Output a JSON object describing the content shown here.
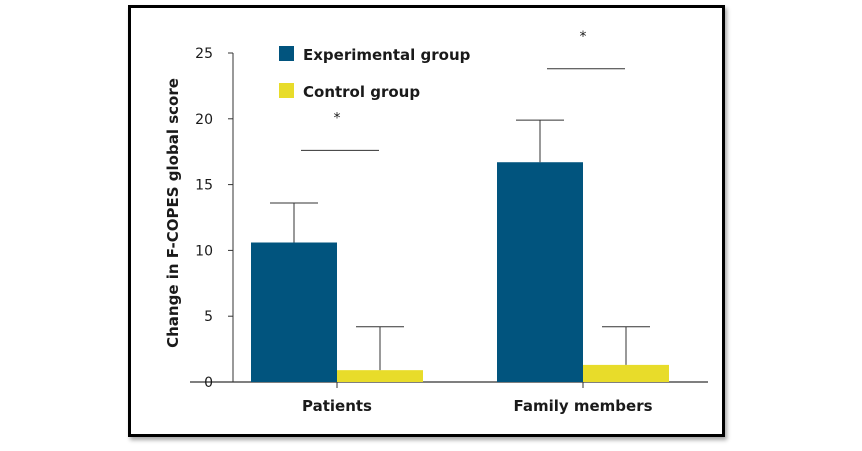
{
  "chart_data": {
    "type": "bar",
    "categories": [
      "Patients",
      "Family members"
    ],
    "series": [
      {
        "name": "Experimental group",
        "color": "#01547e",
        "values": [
          10.6,
          16.7
        ],
        "errors": [
          3.0,
          3.2
        ]
      },
      {
        "name": "Control group",
        "color": "#e8dc2a",
        "values": [
          0.9,
          1.3
        ],
        "errors": [
          3.3,
          2.9
        ]
      }
    ],
    "title": "",
    "xlabel": "",
    "ylabel": "Change in F-COPES global score",
    "ylim": [
      0,
      25
    ],
    "yticks": [
      0,
      5,
      10,
      15,
      20,
      25
    ],
    "grid": false,
    "legend_position": "top-left",
    "annotations": [
      {
        "category": "Patients",
        "text": "*",
        "bracket_y": 17.6
      },
      {
        "category": "Family members",
        "text": "*",
        "bracket_y": 23.8
      }
    ]
  }
}
